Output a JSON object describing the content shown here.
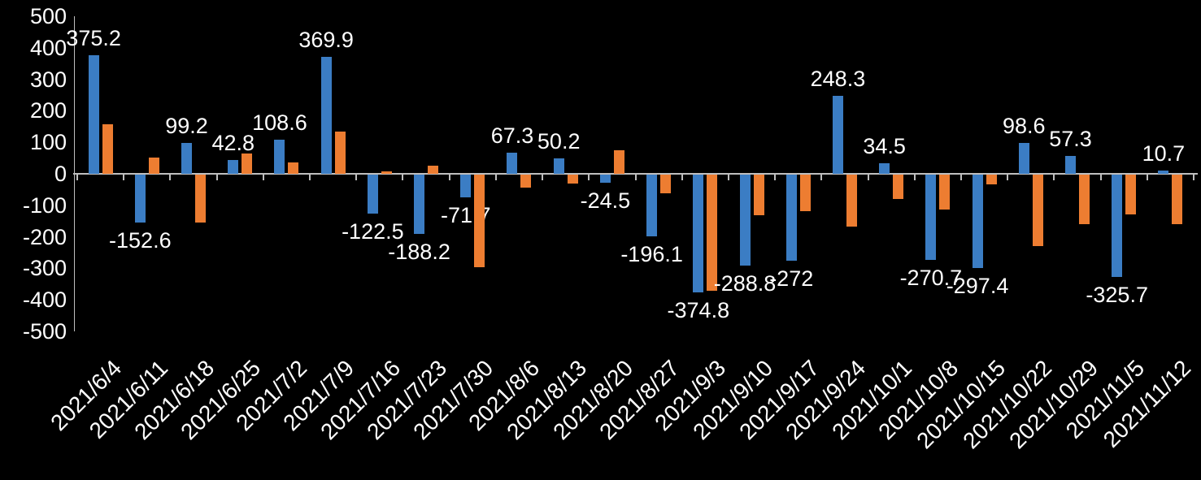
{
  "chart_data": {
    "type": "bar",
    "title": "",
    "legend": "none",
    "grid": false,
    "background_color": "#000000",
    "text_color": "#FFFFFF",
    "axis_color": "#BFBFBF",
    "categories": [
      "2021/6/4",
      "2021/6/11",
      "2021/6/18",
      "2021/6/25",
      "2021/7/2",
      "2021/7/9",
      "2021/7/16",
      "2021/7/23",
      "2021/7/30",
      "2021/8/6",
      "2021/8/13",
      "2021/8/20",
      "2021/8/27",
      "2021/9/3",
      "2021/9/10",
      "2021/9/17",
      "2021/9/24",
      "2021/10/1",
      "2021/10/8",
      "2021/10/15",
      "2021/10/22",
      "2021/10/29",
      "2021/11/5",
      "2021/11/12"
    ],
    "series": [
      {
        "name": "series-1-blue",
        "color": "#3B7DC4",
        "values": [
          375.2,
          -152.6,
          99.2,
          42.8,
          108.6,
          369.9,
          -122.5,
          -188.2,
          -71.7,
          67.3,
          50.2,
          -24.5,
          -196.1,
          -374.8,
          -288.8,
          -272,
          248.3,
          34.5,
          -270.7,
          -297.4,
          98.6,
          57.3,
          -325.7,
          10.7
        ],
        "labels": [
          "375.2",
          "-152.6",
          "99.2",
          "42.8",
          "108.6",
          "369.9",
          "-122.5",
          "-188.2",
          "-71.7",
          "67.3",
          "50.2",
          "-24.5",
          "-196.1",
          "-374.8",
          "-288.8",
          "-272",
          "248.3",
          "34.5",
          "-270.7",
          "-297.4",
          "98.6",
          "57.3",
          "-325.7",
          "10.7"
        ]
      },
      {
        "name": "series-2-orange",
        "color": "#ED7D31",
        "values": [
          157,
          52,
          -152,
          65,
          35,
          135,
          8,
          25,
          -295,
          -42,
          -28,
          75,
          -60,
          -368,
          -130,
          -115,
          -165,
          -78,
          -110,
          -30,
          -228,
          -158,
          -125,
          -158
        ]
      }
    ],
    "y_axis": {
      "min": -500,
      "max": 500,
      "step": 100,
      "ticks": [
        "500",
        "400",
        "300",
        "200",
        "100",
        "0",
        "-100",
        "-200",
        "-300",
        "-400",
        "-500"
      ]
    }
  }
}
